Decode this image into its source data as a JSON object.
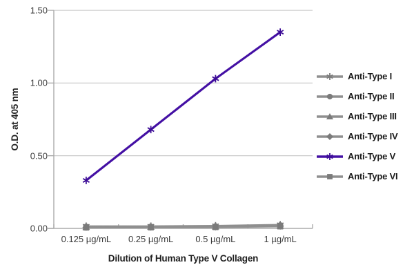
{
  "chart_data": {
    "type": "line",
    "title": "",
    "xlabel": "Dilution of Human Type V Collagen",
    "ylabel": "O.D. at 405 nm",
    "categories": [
      "0.125 µg/mL",
      "0.25 µg/mL",
      "0.5 µg/mL",
      "1 µg/mL"
    ],
    "y_ticks": [
      "0.00",
      "0.50",
      "1.00",
      "1.50"
    ],
    "ylim": [
      0,
      1.5
    ],
    "grid": true,
    "legend_position": "right",
    "series": [
      {
        "name": "Anti-Type I",
        "marker": "asterisk",
        "color": "#8f8f8f",
        "marker_color": "#7b7b7b",
        "line_width": 2.4,
        "values": [
          0.015,
          0.015,
          0.018,
          0.025
        ]
      },
      {
        "name": "Anti-Type II",
        "marker": "circle",
        "color": "#8f8f8f",
        "marker_color": "#7b7b7b",
        "line_width": 2.4,
        "values": [
          0.012,
          0.013,
          0.015,
          0.022
        ]
      },
      {
        "name": "Anti-Type III",
        "marker": "triangle",
        "color": "#8f8f8f",
        "marker_color": "#7b7b7b",
        "line_width": 2.4,
        "values": [
          0.01,
          0.011,
          0.013,
          0.019
        ]
      },
      {
        "name": "Anti-Type IV",
        "marker": "diamond",
        "color": "#8f8f8f",
        "marker_color": "#7b7b7b",
        "line_width": 2.4,
        "values": [
          0.008,
          0.009,
          0.011,
          0.016
        ]
      },
      {
        "name": "Anti-Type V",
        "marker": "asterisk",
        "color": "#4410a4",
        "marker_color": "#3c0c96",
        "line_width": 3.2,
        "values": [
          0.33,
          0.68,
          1.03,
          1.35
        ]
      },
      {
        "name": "Anti-Type VI",
        "marker": "square",
        "color": "#8f8f8f",
        "marker_color": "#7b7b7b",
        "line_width": 2.4,
        "values": [
          0.005,
          0.006,
          0.008,
          0.013
        ]
      }
    ],
    "colors": {
      "grid": "#c6c6c6",
      "axis": "#ababab",
      "text": "#1f1f1f",
      "series_gray": "#8f8f8f",
      "series_purple": "#4410a4"
    }
  }
}
